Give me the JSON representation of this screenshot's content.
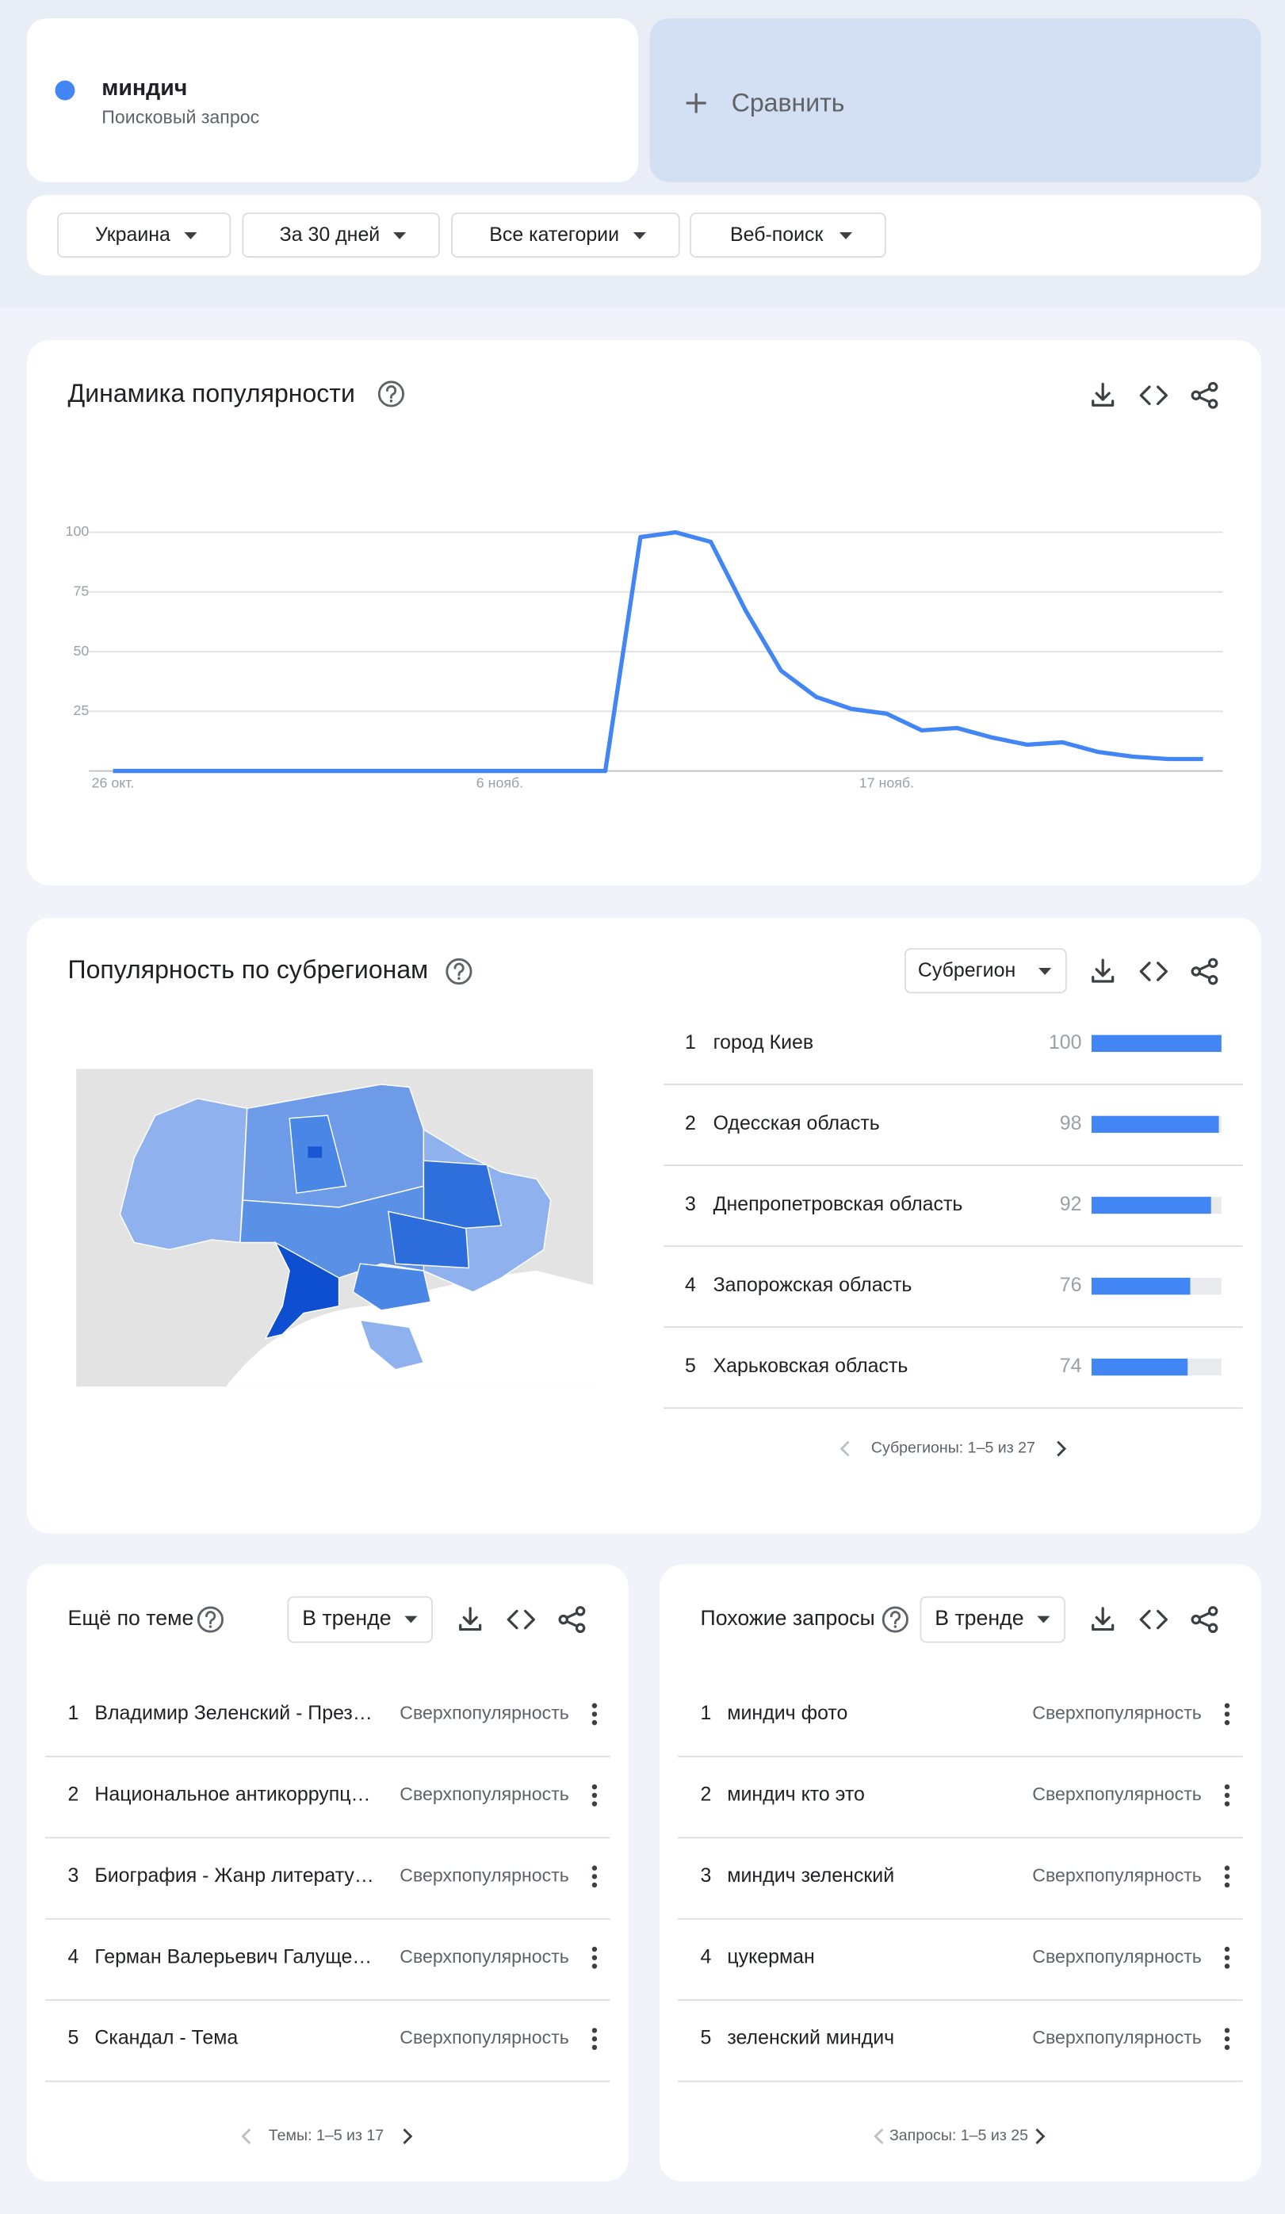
{
  "search": {
    "term": "миндич",
    "subtitle": "Поисковый запрос",
    "compare": "Сравнить"
  },
  "filters": [
    "Украина",
    "За 30 дней",
    "Все категории",
    "Веб-поиск"
  ],
  "chart_data": {
    "type": "line",
    "title": "Динамика популярности",
    "categories": [
      "26 окт.",
      null,
      null,
      null,
      null,
      null,
      null,
      null,
      null,
      null,
      null,
      "6 нояб.",
      null,
      null,
      null,
      null,
      null,
      null,
      null,
      null,
      null,
      null,
      "17 нояб.",
      null,
      null,
      null,
      null,
      null,
      null,
      null,
      null,
      null
    ],
    "series": [
      {
        "name": "миндич",
        "color": "#4285f4",
        "values": [
          0,
          0,
          0,
          0,
          0,
          0,
          0,
          0,
          0,
          0,
          0,
          0,
          0,
          0,
          0,
          98,
          100,
          96,
          67,
          42,
          31,
          26,
          24,
          17,
          18,
          14,
          11,
          12,
          8,
          6,
          5,
          5
        ]
      }
    ],
    "ylim": [
      0,
      100
    ],
    "yticks": [
      25,
      50,
      75,
      100
    ],
    "grid": true
  },
  "regions": {
    "title": "Популярность по субрегионам",
    "dropdown": "Субрегион",
    "items": [
      {
        "rank": "1",
        "name": "город Киев",
        "value": 100
      },
      {
        "rank": "2",
        "name": "Одесская область",
        "value": 98
      },
      {
        "rank": "3",
        "name": "Днепропетровская область",
        "value": 92
      },
      {
        "rank": "4",
        "name": "Запорожская область",
        "value": 76
      },
      {
        "rank": "5",
        "name": "Харьковская область",
        "value": 74
      }
    ],
    "pagination": "Субрегионы: 1–5 из 27",
    "bar_color": "#4285f4"
  },
  "topics": {
    "title": "Ещё по теме",
    "dropdown": "В тренде",
    "items": [
      {
        "rank": "1",
        "name": "Владимир Зеленский - През…",
        "status": "Сверхпопулярность"
      },
      {
        "rank": "2",
        "name": "Национальное антикоррупц…",
        "status": "Сверхпопулярность"
      },
      {
        "rank": "3",
        "name": "Биография - Жанр литерату…",
        "status": "Сверхпопулярность"
      },
      {
        "rank": "4",
        "name": "Герман Валерьевич Галуще…",
        "status": "Сверхпопулярность"
      },
      {
        "rank": "5",
        "name": "Скандал - Тема",
        "status": "Сверхпопулярность"
      }
    ],
    "pagination": "Темы: 1–5 из 17"
  },
  "queries": {
    "title": "Похожие запросы",
    "dropdown": "В тренде",
    "items": [
      {
        "rank": "1",
        "name": "миндич фото",
        "status": "Сверхпопулярность"
      },
      {
        "rank": "2",
        "name": "миндич кто это",
        "status": "Сверхпопулярность"
      },
      {
        "rank": "3",
        "name": "миндич зеленский",
        "status": "Сверхпопулярность"
      },
      {
        "rank": "4",
        "name": "цукерман",
        "status": "Сверхпопулярность"
      },
      {
        "rank": "5",
        "name": "зеленский миндич",
        "status": "Сверхпопулярность"
      }
    ],
    "pagination": "Запросы: 1–5 из 25"
  }
}
